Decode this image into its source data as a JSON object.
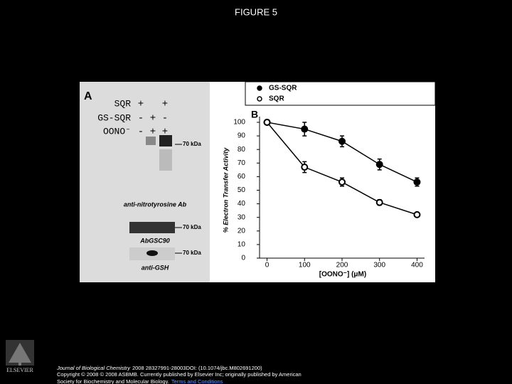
{
  "slide_title": "FIGURE 5",
  "panel_a": {
    "label": "A",
    "rows": [
      {
        "name": "SQR",
        "marks": [
          "+",
          "",
          "+"
        ]
      },
      {
        "name": "GS-SQR",
        "marks": [
          "-",
          "+",
          "-"
        ]
      },
      {
        "name": "OONO⁻",
        "marks": [
          "-",
          "+",
          "+"
        ]
      }
    ],
    "blots": [
      {
        "size": "70 kDa",
        "antibody": "anti-nitrotyrosine Ab"
      },
      {
        "size": "70 kDa",
        "antibody": "AbGSC90"
      },
      {
        "size": "70 kDa",
        "antibody": "anti-GSH"
      }
    ]
  },
  "chart_data": {
    "type": "scatter",
    "panel_label": "B",
    "x_label": "[OONO⁻] (μM)",
    "y_label": "% Electron Transfer Activity",
    "x": [
      0,
      100,
      200,
      300,
      400
    ],
    "series": [
      {
        "name": "GS-SQR",
        "color": "#000000",
        "filled": true,
        "values": [
          100,
          95,
          86,
          69,
          56
        ],
        "errors": [
          1,
          5,
          4,
          4,
          3
        ]
      },
      {
        "name": "SQR",
        "color": "#000000",
        "filled": false,
        "values": [
          100,
          67,
          56,
          41,
          32
        ],
        "errors": [
          1,
          4,
          3,
          2,
          1
        ]
      }
    ],
    "xlim": [
      -20,
      420
    ],
    "ylim": [
      0,
      100
    ],
    "xticks": [
      0,
      100,
      200,
      300,
      400
    ],
    "yticks": [
      0,
      10,
      20,
      30,
      40,
      50,
      60,
      70,
      80,
      90,
      100
    ],
    "legend": "top-right"
  },
  "footer": {
    "journal": "Journal of Biological Chemistry",
    "citation": "2008 28327991-28003DOI: (10.1074/jbc.M802691200)",
    "copyright": "Copyright © 2008 © 2008 ASBMB. Currently published by Elsevier Inc; originally published by American",
    "society": "Society for Biochemistry and Molecular Biology.",
    "link": "Terms and Conditions",
    "logo": "ELSEVIER"
  }
}
